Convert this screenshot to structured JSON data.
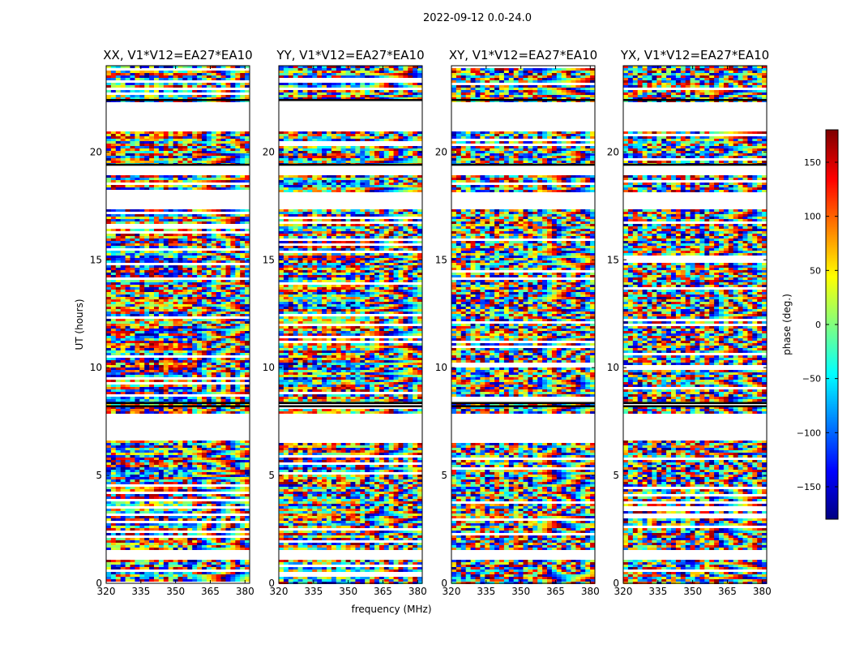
{
  "figure": {
    "suptitle": "2022-09-12 0.0-24.0"
  },
  "chart_data": {
    "type": "heatmap",
    "title": "2022-09-12 0.0-24.0",
    "xlabel": "frequency (MHz)",
    "ylabel": "UT (hours)",
    "colorbar_label": "phase (deg.)",
    "colormap": "jet",
    "xlim": [
      320,
      382
    ],
    "ylim": [
      0,
      24
    ],
    "clim": [
      -180,
      180
    ],
    "x_ticks": [
      320,
      335,
      350,
      365,
      380
    ],
    "y_ticks": [
      0,
      5,
      10,
      15,
      20
    ],
    "colorbar_ticks": [
      150,
      100,
      50,
      0,
      -50,
      -100,
      -150
    ],
    "panels": [
      {
        "title": "XX, V1*V12=EA27*EA10",
        "polarization": "XX"
      },
      {
        "title": "YY, V1*V12=EA27*EA10",
        "polarization": "YY"
      },
      {
        "title": "XY, V1*V12=EA27*EA10",
        "polarization": "XY"
      },
      {
        "title": "YX, V1*V12=EA27*EA10",
        "polarization": "YX"
      }
    ],
    "data_gaps_hours": [
      [
        1.2,
        1.55
      ],
      [
        6.65,
        7.9
      ],
      [
        21.05,
        22.35
      ],
      [
        19.0,
        19.4
      ],
      [
        17.4,
        18.2
      ]
    ],
    "grid": false
  }
}
